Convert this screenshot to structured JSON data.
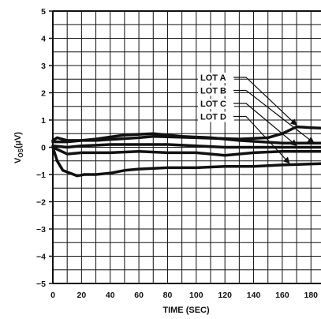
{
  "chart_data": {
    "type": "line",
    "title": "",
    "xlabel": "TIME (SEC)",
    "ylabel": "VOS(µV)",
    "ylabel_main": "V",
    "ylabel_sub": "OS",
    "ylabel_unit": "(µV)",
    "xlim": [
      0,
      187
    ],
    "ylim": [
      -5,
      5
    ],
    "x_ticks": [
      0,
      20,
      40,
      60,
      80,
      100,
      120,
      140,
      160,
      180
    ],
    "y_ticks": [
      -5,
      -4,
      -3,
      -2,
      -1,
      0,
      1,
      2,
      3,
      4,
      5
    ],
    "grid": true,
    "legend_placement": "annotations with leader arrows, upper right",
    "series": [
      {
        "name": "LOT A",
        "x": [
          0,
          3,
          10,
          30,
          60,
          70,
          100,
          130,
          150,
          160,
          170,
          180,
          187
        ],
        "y": [
          0.25,
          0.35,
          0.25,
          0.25,
          0.35,
          0.4,
          0.35,
          0.3,
          0.35,
          0.5,
          0.75,
          0.72,
          0.7
        ]
      },
      {
        "name": "LOT B",
        "x": [
          0,
          10,
          30,
          50,
          70,
          90,
          110,
          130,
          160,
          187
        ],
        "y": [
          0.2,
          0.2,
          0.3,
          0.45,
          0.5,
          0.4,
          0.35,
          0.25,
          0.15,
          0.15
        ]
      },
      {
        "name": "LOT C",
        "x": [
          0,
          10,
          20,
          40,
          60,
          80,
          100,
          120,
          150,
          187
        ],
        "y": [
          0.05,
          0.0,
          0.05,
          0.1,
          0.1,
          0.1,
          0.05,
          0.0,
          0.0,
          0.0
        ]
      },
      {
        "name": "LOT D",
        "x": [
          0,
          3,
          7,
          12,
          17,
          22,
          30,
          40,
          50,
          60,
          80,
          100,
          120,
          140,
          160,
          187
        ],
        "y": [
          0.0,
          -0.5,
          -0.85,
          -0.95,
          -1.05,
          -1.0,
          -1.0,
          -0.95,
          -0.85,
          -0.8,
          -0.75,
          -0.75,
          -0.7,
          -0.7,
          -0.65,
          -0.6
        ]
      },
      {
        "name": "",
        "x": [
          0,
          10,
          20,
          40,
          60,
          80,
          100,
          120,
          140,
          160,
          187
        ],
        "y": [
          0.0,
          -0.25,
          -0.2,
          -0.2,
          -0.15,
          -0.2,
          -0.2,
          -0.3,
          -0.2,
          -0.15,
          -0.15
        ]
      }
    ],
    "annotations": [
      {
        "label": "LOT A",
        "points_to": [
          170,
          0.75
        ]
      },
      {
        "label": "LOT B",
        "points_to": [
          182,
          0.1
        ]
      },
      {
        "label": "LOT C",
        "points_to": [
          170,
          0.0
        ]
      },
      {
        "label": "LOT D",
        "points_to": [
          165,
          -0.65
        ]
      }
    ]
  }
}
